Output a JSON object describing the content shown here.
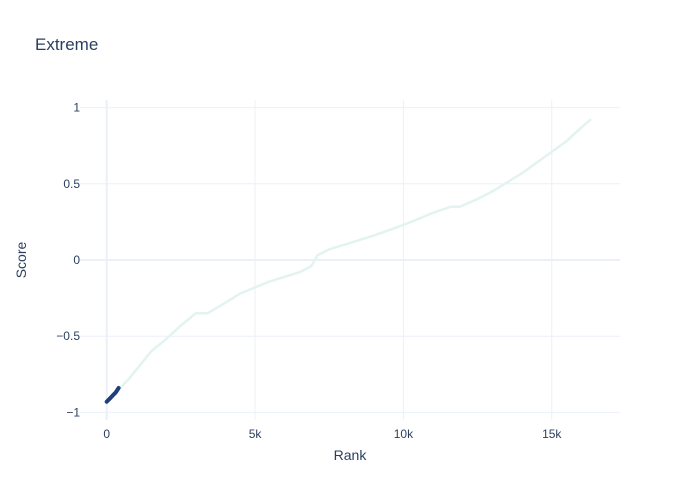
{
  "chart_data": {
    "type": "line",
    "title": "Extreme",
    "xlabel": "Rank",
    "ylabel": "Score",
    "xlim": [
      -900,
      17300
    ],
    "ylim": [
      -1.05,
      1.05
    ],
    "x_ticks": [
      0,
      5000,
      10000,
      15000
    ],
    "x_tick_labels": [
      "0",
      "5k",
      "10k",
      "15k"
    ],
    "y_ticks": [
      -1,
      -0.5,
      0,
      0.5,
      1
    ],
    "y_tick_labels": [
      "−1",
      "−0.5",
      "0",
      "0.5",
      "1"
    ],
    "grid": true,
    "legend": "none",
    "series": [
      {
        "color": "#e3f3f2",
        "x": [
          0,
          300,
          700,
          1000,
          1500,
          2000,
          2500,
          3000,
          3400,
          4000,
          4500,
          5000,
          5500,
          6000,
          6500,
          6900,
          7100,
          7500,
          8000,
          9000,
          10000,
          11000,
          11600,
          11900,
          12500,
          13000,
          14000,
          15000,
          15500,
          16000,
          16300
        ],
        "y": [
          -0.93,
          -0.87,
          -0.79,
          -0.72,
          -0.6,
          -0.52,
          -0.43,
          -0.35,
          -0.35,
          -0.28,
          -0.22,
          -0.18,
          -0.14,
          -0.11,
          -0.08,
          -0.04,
          0.03,
          0.07,
          0.1,
          0.16,
          0.23,
          0.31,
          0.35,
          0.35,
          0.4,
          0.45,
          0.57,
          0.71,
          0.78,
          0.87,
          0.92
        ]
      },
      {
        "color": "#1f3f7a",
        "x": [
          0,
          100,
          200,
          300,
          400
        ],
        "y": [
          -0.93,
          -0.91,
          -0.89,
          -0.87,
          -0.84
        ]
      }
    ]
  }
}
